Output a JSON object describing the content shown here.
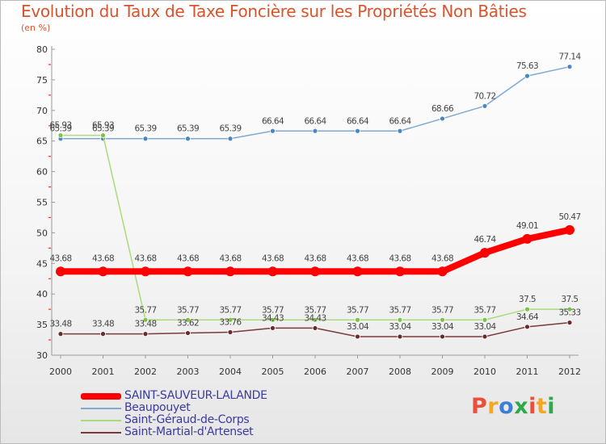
{
  "title": "Evolution du Taux de Taxe Foncière sur les Propriétés Non Bâties",
  "subtitle": "(en %)",
  "logo": {
    "text": "Proxiti",
    "colors": [
      "#e8503a",
      "#f5a623",
      "#3a7ed8",
      "#2eaa4a",
      "#e8503a",
      "#f5a623",
      "#2eaa4a"
    ]
  },
  "chart_data": {
    "type": "line",
    "title": "Evolution du Taux de Taxe Foncière sur les Propriétés Non Bâties",
    "ylabel": "(en %)",
    "xlabel": "",
    "ylim": [
      30,
      80
    ],
    "yticks": [
      "30",
      "35",
      "40",
      "45",
      "50",
      "55",
      "60",
      "65",
      "70",
      "75",
      "80"
    ],
    "x": [
      "2000",
      "2001",
      "2002",
      "2003",
      "2004",
      "2005",
      "2006",
      "2007",
      "2008",
      "2009",
      "2010",
      "2011",
      "2012"
    ],
    "legend_position": "bottom-left",
    "grid": false,
    "series": [
      {
        "name": "Beaupouyet",
        "color": "#7fa8d4",
        "marker": "#4a86c0",
        "width": 1.5,
        "marker_r": 3,
        "values": [
          65.39,
          65.39,
          65.39,
          65.39,
          65.39,
          66.64,
          66.64,
          66.64,
          66.64,
          68.66,
          70.72,
          75.63,
          77.14
        ],
        "labels": [
          "65.39",
          "65.39",
          "65.39",
          "65.39",
          "65.39",
          "66.64",
          "66.64",
          "66.64",
          "66.64",
          "68.66",
          "70.72",
          "75.63",
          "77.14"
        ]
      },
      {
        "name": "Saint-Géraud-de-Corps",
        "color": "#a8dc7a",
        "marker": "#7cc24a",
        "width": 1.5,
        "marker_r": 3,
        "values": [
          65.93,
          65.93,
          35.77,
          35.77,
          35.77,
          35.77,
          35.77,
          35.77,
          35.77,
          35.77,
          35.77,
          37.5,
          37.5
        ],
        "labels": [
          "65.93",
          "65.93",
          "35.77",
          "35.77",
          "35.77",
          "35.77",
          "35.77",
          "35.77",
          "35.77",
          "35.77",
          "35.77",
          "37.5",
          "37.5"
        ]
      },
      {
        "name": "Saint-Martial-d'Artenset",
        "color": "#7a3a3a",
        "marker": "#6a2a2a",
        "width": 1.5,
        "marker_r": 3,
        "values": [
          33.48,
          33.48,
          33.48,
          33.62,
          33.76,
          34.43,
          34.43,
          33.04,
          33.04,
          33.04,
          33.04,
          34.64,
          35.33
        ],
        "labels": [
          "33.48",
          "33.48",
          "33.48",
          "33.62",
          "33.76",
          "34.43",
          "34.43",
          "33.04",
          "33.04",
          "33.04",
          "33.04",
          "34.64",
          "35.33"
        ]
      },
      {
        "name": "SAINT-SAUVEUR-LALANDE",
        "color": "#ff0000",
        "marker": "#ff0000",
        "width": 8,
        "marker_r": 6,
        "values": [
          43.68,
          43.68,
          43.68,
          43.68,
          43.68,
          43.68,
          43.68,
          43.68,
          43.68,
          43.68,
          46.74,
          49.01,
          50.47
        ],
        "labels": [
          "43.68",
          "43.68",
          "43.68",
          "43.68",
          "43.68",
          "43.68",
          "43.68",
          "43.68",
          "43.68",
          "43.68",
          "46.74",
          "49.01",
          "50.47"
        ]
      }
    ],
    "legend": [
      {
        "name": "SAINT-SAUVEUR-LALANDE",
        "color": "#ff0000",
        "thickness": 8
      },
      {
        "name": "Beaupouyet",
        "color": "#7fa8d4",
        "thickness": 2
      },
      {
        "name": "Saint-Géraud-de-Corps",
        "color": "#a8dc7a",
        "thickness": 2
      },
      {
        "name": "Saint-Martial-d'Artenset",
        "color": "#7a3a3a",
        "thickness": 2
      }
    ]
  }
}
